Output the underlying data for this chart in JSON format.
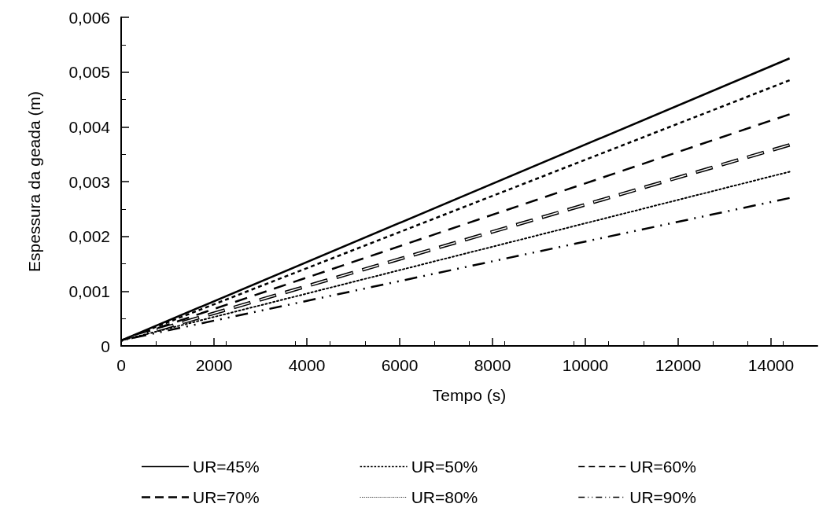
{
  "chart_data": {
    "type": "line",
    "xlabel": "Tempo (s)",
    "ylabel": "Espessura da geada (m)",
    "x": [
      0,
      14400
    ],
    "series": [
      {
        "name": "UR=45%",
        "color": "#000000",
        "line_style": "solid",
        "values": [
          0.0001,
          0.00525
        ]
      },
      {
        "name": "UR=50%",
        "color": "#000000",
        "line_style": "dashed",
        "values": [
          0.0001,
          0.00485
        ]
      },
      {
        "name": "UR=60%",
        "color": "#000000",
        "line_style": "long-dashed",
        "values": [
          0.0001,
          0.00423
        ]
      },
      {
        "name": "UR=70%",
        "color": "#000000",
        "line_style": "double",
        "values": [
          0.0001,
          0.00367
        ]
      },
      {
        "name": "UR=80%",
        "color": "#000000",
        "line_style": "dotted",
        "values": [
          0.0001,
          0.00318
        ]
      },
      {
        "name": "UR=90%",
        "color": "#000000",
        "line_style": "dash-dot",
        "values": [
          0.0001,
          0.0027
        ]
      }
    ],
    "xlim": [
      0,
      15000
    ],
    "xticks": [
      0,
      2000,
      4000,
      6000,
      8000,
      10000,
      12000,
      14000
    ],
    "ylim": [
      0,
      0.006
    ],
    "yticks": [
      0,
      {
        "value": 0.001,
        "label": "0,001"
      },
      {
        "value": 0.002,
        "label": "0,002"
      },
      {
        "value": 0.003,
        "label": "0,003"
      },
      {
        "value": 0.004,
        "label": "0,004"
      },
      {
        "value": 0.005,
        "label": "0,005"
      },
      {
        "value": 0.006,
        "label": "0,006"
      }
    ],
    "grid": false,
    "legend": "bottom",
    "marker": "none"
  }
}
